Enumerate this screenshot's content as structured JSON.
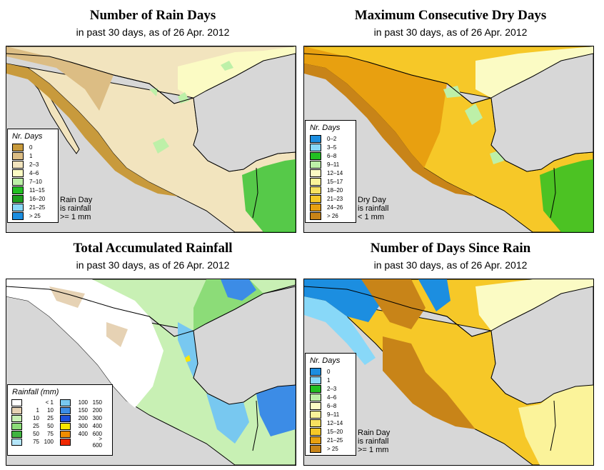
{
  "panels": [
    {
      "title": "Number of Rain Days",
      "subtitle": "in past 30 days, as of  26 Apr. 2012",
      "legend_title": "Nr. Days",
      "legend": [
        {
          "label": "0",
          "color": "#c89a3c"
        },
        {
          "label": "1",
          "color": "#dcbd84"
        },
        {
          "label": "2–3",
          "color": "#f2e4be"
        },
        {
          "label": "4–6",
          "color": "#fbfbc4"
        },
        {
          "label": "7–10",
          "color": "#bdf0a8"
        },
        {
          "label": "11–15",
          "color": "#22c022"
        },
        {
          "label": "16–20",
          "color": "#1ea01e"
        },
        {
          "label": "21–25",
          "color": "#88d8f8"
        },
        {
          "label": "> 25",
          "color": "#1c8ee0"
        }
      ],
      "note": [
        "Rain Day",
        "is rainfall",
        ">= 1 mm"
      ]
    },
    {
      "title": "Maximum Consecutive Dry Days",
      "subtitle": "in past 30 days, as of  26 Apr. 2012",
      "legend_title": "Nr. Days",
      "legend": [
        {
          "label": "0–2",
          "color": "#1c8ee0"
        },
        {
          "label": "3–5",
          "color": "#88d8f8"
        },
        {
          "label": "6–8",
          "color": "#22c022"
        },
        {
          "label": "9–11",
          "color": "#bdf0a8"
        },
        {
          "label": "12–14",
          "color": "#fbfbc4"
        },
        {
          "label": "15–17",
          "color": "#fbf39a"
        },
        {
          "label": "18–20",
          "color": "#f8e060"
        },
        {
          "label": "21–23",
          "color": "#f6c828"
        },
        {
          "label": "24–26",
          "color": "#e8a010"
        },
        {
          "label": "> 26",
          "color": "#c88418"
        }
      ],
      "note": [
        "Dry Day",
        "is rainfall",
        "< 1 mm"
      ]
    },
    {
      "title": "Total Accumulated Rainfall",
      "subtitle": "in past 30 days, as of  26 Apr. 2012",
      "legend_title": "Rainfall (mm)",
      "legend_left": [
        {
          "from": "",
          "to": "< 1",
          "color": "#ffffff"
        },
        {
          "from": "1",
          "to": "10",
          "color": "#e6d2b4"
        },
        {
          "from": "10",
          "to": "25",
          "color": "#c8f0b4"
        },
        {
          "from": "25",
          "to": "50",
          "color": "#8cdc78"
        },
        {
          "from": "50",
          "to": "75",
          "color": "#40b440"
        },
        {
          "from": "75",
          "to": "100",
          "color": "#b4e6fa"
        }
      ],
      "legend_right": [
        {
          "from": "100",
          "to": "150",
          "color": "#78c8f0"
        },
        {
          "from": "150",
          "to": "200",
          "color": "#3c8ce6"
        },
        {
          "from": "200",
          "to": "300",
          "color": "#1e50dc"
        },
        {
          "from": "300",
          "to": "400",
          "color": "#fae600"
        },
        {
          "from": "400",
          "to": "600",
          "color": "#f08c00"
        },
        {
          "from": "",
          "to": "> 600",
          "color": "#f02800"
        }
      ]
    },
    {
      "title": "Number of Days Since Rain",
      "subtitle": "in past 30 days, as of  26 Apr. 2012",
      "legend_title": "Nr. Days",
      "legend": [
        {
          "label": "0",
          "color": "#1c8ee0"
        },
        {
          "label": "1",
          "color": "#88d8f8"
        },
        {
          "label": "2–3",
          "color": "#22c022"
        },
        {
          "label": "4–6",
          "color": "#bdf0a8"
        },
        {
          "label": "6–8",
          "color": "#fbfbc4"
        },
        {
          "label": "9–11",
          "color": "#fbf39a"
        },
        {
          "label": "12–14",
          "color": "#f8e060"
        },
        {
          "label": "15–20",
          "color": "#f6c828"
        },
        {
          "label": "21–25",
          "color": "#e8a010"
        },
        {
          "label": "> 25",
          "color": "#c88418"
        }
      ],
      "note": [
        "Rain Day",
        "is rainfall",
        ">= 1 mm"
      ]
    }
  ],
  "colors": {
    "ocean": "#d7d7d7",
    "border": "#000000"
  }
}
